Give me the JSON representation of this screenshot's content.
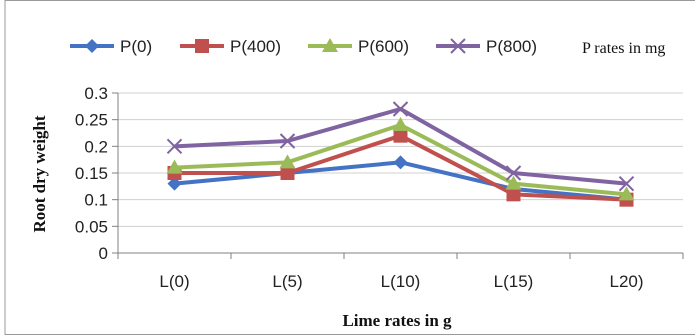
{
  "chart_data": {
    "type": "line",
    "categories": [
      "L(0)",
      "L(5)",
      "L(10)",
      "L(15)",
      "L20)"
    ],
    "series": [
      {
        "name": "P(0)",
        "values": [
          0.13,
          0.15,
          0.17,
          0.12,
          0.1
        ],
        "color": "#4472C4",
        "marker": "diamond"
      },
      {
        "name": "P(400)",
        "values": [
          0.15,
          0.15,
          0.22,
          0.11,
          0.1
        ],
        "color": "#C0504D",
        "marker": "square"
      },
      {
        "name": "P(600)",
        "values": [
          0.16,
          0.17,
          0.24,
          0.13,
          0.11
        ],
        "color": "#9BBB59",
        "marker": "triangle"
      },
      {
        "name": "P(800)",
        "values": [
          0.2,
          0.21,
          0.27,
          0.15,
          0.13
        ],
        "color": "#8064A2",
        "marker": "x"
      }
    ],
    "yticks": [
      "0",
      "0.05",
      "0.1",
      "0.15",
      "0.2",
      "0.25",
      "0.3"
    ],
    "ylim": [
      0,
      0.3
    ],
    "xlabel": "Lime rates in g",
    "ylabel": "Root dry weight",
    "legend_note": "P rates in mg",
    "legend_position": "top",
    "grid": true
  }
}
